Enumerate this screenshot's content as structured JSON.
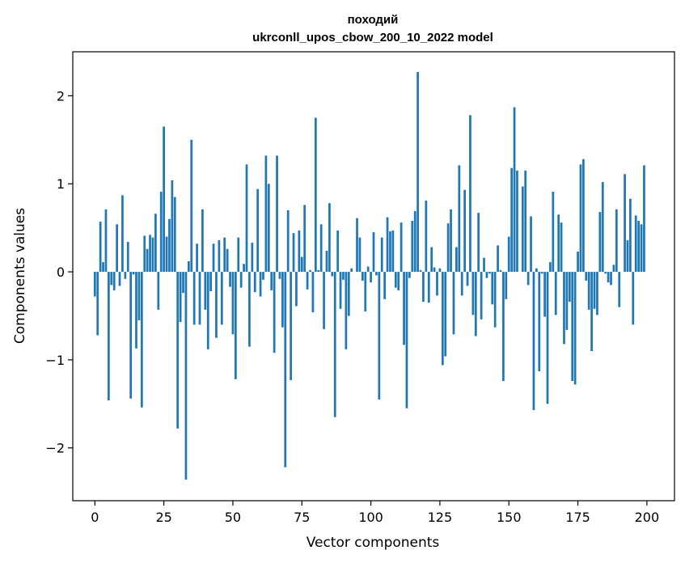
{
  "chart_data": {
    "type": "bar",
    "title_line1": "походий",
    "title_line2": "ukrconll_upos_cbow_200_10_2022 model",
    "xlabel": "Vector components",
    "ylabel": "Components values",
    "xlim": [
      -8,
      210
    ],
    "ylim": [
      -2.6,
      2.5
    ],
    "xticks": [
      0,
      25,
      50,
      75,
      100,
      125,
      150,
      175,
      200
    ],
    "yticks": [
      -2,
      -1,
      0,
      1,
      2
    ],
    "ytick_labels": [
      "−2",
      "−1",
      "0",
      "1",
      "2"
    ],
    "bar_color": "#1f77b4",
    "grid": false,
    "x": [
      0,
      1,
      2,
      3,
      4,
      5,
      6,
      7,
      8,
      9,
      10,
      11,
      12,
      13,
      14,
      15,
      16,
      17,
      18,
      19,
      20,
      21,
      22,
      23,
      24,
      25,
      26,
      27,
      28,
      29,
      30,
      31,
      32,
      33,
      34,
      35,
      36,
      37,
      38,
      39,
      40,
      41,
      42,
      43,
      44,
      45,
      46,
      47,
      48,
      49,
      50,
      51,
      52,
      53,
      54,
      55,
      56,
      57,
      58,
      59,
      60,
      61,
      62,
      63,
      64,
      65,
      66,
      67,
      68,
      69,
      70,
      71,
      72,
      73,
      74,
      75,
      76,
      77,
      78,
      79,
      80,
      81,
      82,
      83,
      84,
      85,
      86,
      87,
      88,
      89,
      90,
      91,
      92,
      93,
      94,
      95,
      96,
      97,
      98,
      99,
      100,
      101,
      102,
      103,
      104,
      105,
      106,
      107,
      108,
      109,
      110,
      111,
      112,
      113,
      114,
      115,
      116,
      117,
      118,
      119,
      120,
      121,
      122,
      123,
      124,
      125,
      126,
      127,
      128,
      129,
      130,
      131,
      132,
      133,
      134,
      135,
      136,
      137,
      138,
      139,
      140,
      141,
      142,
      143,
      144,
      145,
      146,
      147,
      148,
      149,
      150,
      151,
      152,
      153,
      154,
      155,
      156,
      157,
      158,
      159,
      160,
      161,
      162,
      163,
      164,
      165,
      166,
      167,
      168,
      169,
      170,
      171,
      172,
      173,
      174,
      175,
      176,
      177,
      178,
      179,
      180,
      181,
      182,
      183,
      184,
      185,
      186,
      187,
      188,
      189,
      190,
      191,
      192,
      193,
      194,
      195,
      196,
      197,
      198,
      199
    ],
    "values": [
      -0.28,
      -0.72,
      0.57,
      0.11,
      0.71,
      -1.46,
      -0.15,
      -0.21,
      0.54,
      -0.16,
      0.87,
      -0.08,
      0.34,
      -1.44,
      -0.03,
      -0.87,
      -0.55,
      -1.54,
      0.41,
      0.26,
      0.42,
      0.39,
      0.66,
      -0.43,
      0.91,
      1.65,
      0.4,
      0.6,
      1.04,
      0.85,
      -1.78,
      -0.57,
      -0.24,
      -2.36,
      0.12,
      1.5,
      -0.6,
      0.32,
      -0.6,
      0.71,
      -0.43,
      -0.88,
      -0.22,
      0.32,
      -0.75,
      0.36,
      -0.6,
      0.39,
      0.26,
      -0.17,
      -0.71,
      -1.22,
      0.39,
      -0.18,
      0.09,
      1.22,
      -0.85,
      0.33,
      -0.23,
      0.94,
      -0.28,
      -0.09,
      1.32,
      1.0,
      -0.21,
      -0.92,
      1.32,
      -0.08,
      -0.63,
      -2.22,
      0.7,
      -1.23,
      0.44,
      -0.39,
      0.47,
      0.17,
      0.76,
      -0.2,
      0.02,
      -0.46,
      1.75,
      0.02,
      0.54,
      -0.65,
      0.24,
      0.78,
      -0.05,
      -1.65,
      0.47,
      -0.42,
      -0.09,
      -0.88,
      -0.5,
      0.04,
      0.0,
      0.61,
      0.39,
      -0.1,
      -0.45,
      0.06,
      -0.12,
      0.45,
      -0.04,
      -1.45,
      0.39,
      -0.31,
      0.62,
      0.46,
      0.47,
      -0.18,
      -0.21,
      0.56,
      -0.83,
      -1.55,
      -0.07,
      0.58,
      0.69,
      2.27,
      0.02,
      -0.34,
      0.81,
      -0.35,
      0.28,
      0.05,
      -0.27,
      0.04,
      -1.06,
      -0.96,
      0.55,
      0.71,
      -0.71,
      0.28,
      1.21,
      -0.27,
      0.93,
      -0.16,
      1.78,
      -0.49,
      -0.73,
      0.67,
      -0.54,
      0.16,
      -0.07,
      -0.02,
      -0.37,
      -0.63,
      0.3,
      0.02,
      -1.24,
      -0.31,
      0.4,
      1.18,
      1.87,
      1.15,
      0.0,
      0.97,
      1.15,
      -0.15,
      0.63,
      -1.57,
      0.04,
      -1.13,
      -0.02,
      -0.51,
      -1.5,
      0.11,
      0.91,
      -0.49,
      0.65,
      0.56,
      -0.82,
      -0.66,
      -0.34,
      -1.24,
      -1.28,
      0.23,
      1.22,
      1.28,
      -0.1,
      -0.43,
      -0.9,
      -0.42,
      -0.49,
      0.68,
      1.02,
      -0.02,
      -0.12,
      -0.15,
      0.08,
      0.71,
      -0.4,
      0.0,
      1.11,
      0.36,
      0.83,
      -0.6,
      0.64,
      0.58,
      0.54,
      1.21
    ]
  }
}
